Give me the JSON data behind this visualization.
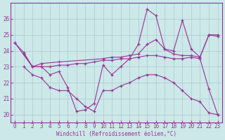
{
  "xlabel": "Windchill (Refroidissement éolien,°C)",
  "bg_color": "#cce8e8",
  "line_color": "#993399",
  "grid_color": "#aacccc",
  "ylim": [
    19.5,
    27.0
  ],
  "xlim": [
    -0.5,
    23.5
  ],
  "yticks": [
    20,
    21,
    22,
    23,
    24,
    25,
    26
  ],
  "xticks": [
    0,
    1,
    2,
    3,
    4,
    5,
    6,
    7,
    8,
    9,
    10,
    11,
    12,
    13,
    14,
    15,
    16,
    17,
    18,
    19,
    20,
    21,
    22,
    23
  ],
  "lines": [
    {
      "x": [
        0,
        1,
        2,
        3,
        4,
        5,
        6,
        7,
        8,
        9,
        10,
        11,
        12,
        13,
        14,
        15,
        16,
        17,
        18,
        19,
        20,
        21,
        22,
        23
      ],
      "y": [
        24.5,
        23.9,
        23.0,
        23.0,
        22.5,
        22.7,
        21.7,
        20.2,
        20.3,
        20.7,
        23.1,
        22.5,
        23.0,
        23.5,
        24.4,
        26.6,
        26.2,
        24.1,
        24.0,
        25.9,
        24.1,
        23.6,
        25.0,
        24.9
      ]
    },
    {
      "x": [
        0,
        2,
        3,
        5,
        10,
        11,
        12,
        13,
        14,
        15,
        16,
        17,
        18,
        19,
        20,
        21,
        22,
        23
      ],
      "y": [
        24.5,
        23.0,
        23.2,
        23.3,
        23.5,
        23.6,
        23.6,
        23.7,
        23.8,
        24.4,
        24.7,
        24.1,
        23.8,
        23.7,
        23.7,
        23.6,
        25.0,
        25.0
      ]
    },
    {
      "x": [
        1,
        2,
        3,
        4,
        5,
        6,
        7,
        8,
        9,
        10,
        11,
        12,
        13,
        14,
        15,
        16,
        17,
        18,
        19,
        20,
        21,
        22,
        23
      ],
      "y": [
        23.8,
        23.0,
        23.0,
        23.0,
        23.1,
        23.1,
        23.2,
        23.2,
        23.3,
        23.4,
        23.4,
        23.5,
        23.5,
        23.6,
        23.7,
        23.7,
        23.6,
        23.5,
        23.5,
        23.6,
        23.5,
        21.6,
        20.0
      ]
    },
    {
      "x": [
        1,
        2,
        3,
        4,
        5,
        6,
        7,
        8,
        9,
        10,
        11,
        12,
        13,
        14,
        15,
        16,
        17,
        18,
        19,
        20,
        21,
        22,
        23
      ],
      "y": [
        23.0,
        22.5,
        22.3,
        21.7,
        21.5,
        21.5,
        21.0,
        20.5,
        20.2,
        21.5,
        21.5,
        21.8,
        22.0,
        22.3,
        22.5,
        22.5,
        22.3,
        22.0,
        21.5,
        21.0,
        20.8,
        20.1,
        20.0
      ]
    }
  ]
}
